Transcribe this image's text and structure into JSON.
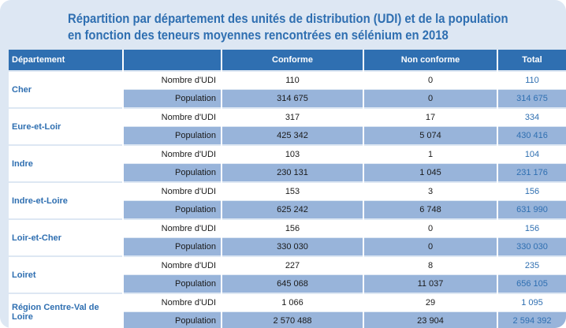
{
  "title": {
    "line1": "Répartition par département des unités de distribution (UDI) et de la population",
    "line2": "en fonction des teneurs moyennes rencontrées en sélénium en 2018"
  },
  "columns": {
    "departement": "Département",
    "measure": "",
    "conforme": "Conforme",
    "non_conforme": "Non conforme",
    "total": "Total"
  },
  "rows": [
    {
      "dept": "Cher",
      "udi": {
        "label": "Nombre d'UDI",
        "conforme": "110",
        "non_conforme": "0",
        "total": "110"
      },
      "pop": {
        "label": "Population",
        "conforme": "314 675",
        "non_conforme": "0",
        "total": "314 675"
      }
    },
    {
      "dept": "Eure-et-Loir",
      "udi": {
        "label": "Nombre d'UDI",
        "conforme": "317",
        "non_conforme": "17",
        "total": "334"
      },
      "pop": {
        "label": "Population",
        "conforme": "425 342",
        "non_conforme": "5 074",
        "total": "430 416"
      }
    },
    {
      "dept": "Indre",
      "udi": {
        "label": "Nombre d'UDI",
        "conforme": "103",
        "non_conforme": "1",
        "total": "104"
      },
      "pop": {
        "label": "Population",
        "conforme": "230 131",
        "non_conforme": "1 045",
        "total": "231 176"
      }
    },
    {
      "dept": "Indre-et-Loire",
      "udi": {
        "label": "Nombre d'UDI",
        "conforme": "153",
        "non_conforme": "3",
        "total": "156"
      },
      "pop": {
        "label": "Population",
        "conforme": "625 242",
        "non_conforme": "6 748",
        "total": "631 990"
      }
    },
    {
      "dept": "Loir-et-Cher",
      "udi": {
        "label": "Nombre d'UDI",
        "conforme": "156",
        "non_conforme": "0",
        "total": "156"
      },
      "pop": {
        "label": "Population",
        "conforme": "330 030",
        "non_conforme": "0",
        "total": "330 030"
      }
    },
    {
      "dept": "Loiret",
      "udi": {
        "label": "Nombre d'UDI",
        "conforme": "227",
        "non_conforme": "8",
        "total": "235"
      },
      "pop": {
        "label": "Population",
        "conforme": "645 068",
        "non_conforme": "11 037",
        "total": "656 105"
      }
    },
    {
      "dept": "Région Centre-Val de Loire",
      "udi": {
        "label": "Nombre d'UDI",
        "conforme": "1 066",
        "non_conforme": "29",
        "total": "1 095"
      },
      "pop": {
        "label": "Population",
        "conforme": "2 570 488",
        "non_conforme": "23 904",
        "total": "2 594 392"
      }
    }
  ]
}
